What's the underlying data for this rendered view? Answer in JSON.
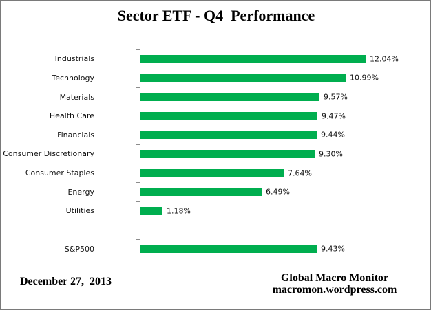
{
  "chart_data": {
    "type": "bar",
    "orientation": "horizontal",
    "title": "Sector ETF - Q4  Performance",
    "categories": [
      "Industrials",
      "Technology",
      "Materials",
      "Health Care",
      "Financials",
      "Consumer Discretionary",
      "Consumer Staples",
      "Energy",
      "Utilities",
      "S&P500"
    ],
    "values": [
      12.04,
      10.99,
      9.57,
      9.47,
      9.44,
      9.3,
      7.64,
      6.49,
      1.18,
      9.43
    ],
    "value_labels": [
      "12.04%",
      "10.99%",
      "9.57%",
      "9.47%",
      "9.44%",
      "9.30%",
      "7.64%",
      "6.49%",
      "1.18%",
      "9.43%"
    ],
    "blank_row_index": 9,
    "xlim": [
      0,
      12.5
    ],
    "grid": false,
    "legend": false,
    "bar_color": "#00AE4F",
    "axis_color": "#8C8C8C"
  },
  "footer": {
    "date": "December 27,  2013",
    "attribution_line1": "Global Macro Monitor",
    "attribution_line2": "macromon.wordpress.com"
  }
}
